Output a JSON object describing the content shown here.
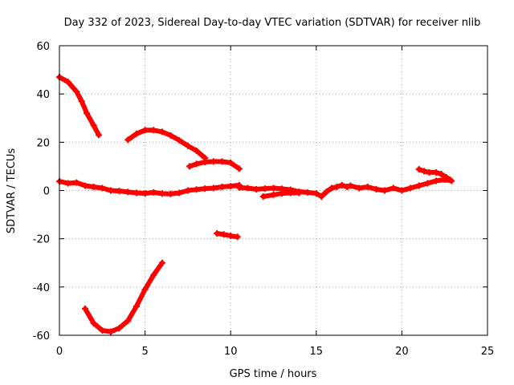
{
  "chart_data": {
    "type": "scatter",
    "title": "Day 332 of 2023, Sidereal Day-to-day VTEC variation (SDTVAR) for receiver nlib",
    "xlabel": "GPS time / hours",
    "ylabel": "SDTVAR / TECUs",
    "xlim": [
      0,
      25
    ],
    "ylim": [
      -60,
      60
    ],
    "xticks": [
      0,
      5,
      10,
      15,
      20,
      25
    ],
    "yticks": [
      -60,
      -40,
      -20,
      0,
      20,
      40,
      60
    ],
    "grid": true,
    "legend": "none",
    "series_color": "#ff0000",
    "series": [
      {
        "name": "baseline",
        "x": [
          0.0,
          0.5,
          1.0,
          1.5,
          2.0,
          2.5,
          3.0,
          3.5,
          4.0,
          4.5,
          5.0,
          5.5,
          6.0,
          6.5,
          7.0,
          7.5,
          8.0,
          8.5,
          9.0,
          9.5,
          10.0,
          10.5
        ],
        "y": [
          3.8,
          3.0,
          3.3,
          2.0,
          1.5,
          1.0,
          0.0,
          -0.2,
          -0.6,
          -1.0,
          -1.2,
          -0.8,
          -1.3,
          -1.4,
          -1.0,
          0.0,
          0.4,
          0.8,
          1.0,
          1.5,
          1.8,
          2.2
        ]
      },
      {
        "name": "mid",
        "x": [
          10.5,
          11.0,
          11.5,
          12.0,
          12.5,
          13.0,
          13.5,
          14.0,
          14.5,
          15.0,
          15.3,
          15.6,
          15.9,
          16.2,
          16.5,
          16.8,
          17.0,
          17.5,
          18.0,
          18.5,
          19.0,
          19.5,
          20.0,
          20.5,
          21.0,
          21.5,
          22.0,
          22.5,
          22.9
        ],
        "y": [
          1.2,
          1.0,
          0.5,
          0.8,
          1.0,
          0.7,
          0.3,
          -0.5,
          -0.8,
          -1.2,
          -2.5,
          -0.5,
          1.0,
          1.5,
          2.2,
          1.5,
          2.0,
          1.0,
          1.5,
          0.5,
          0.0,
          1.0,
          0.0,
          1.0,
          2.0,
          3.0,
          4.0,
          4.5,
          4.0
        ]
      },
      {
        "name": "low-branch",
        "x": [
          11.9,
          12.5,
          13.0,
          13.5,
          14.0
        ],
        "y": [
          -2.5,
          -1.8,
          -1.2,
          -1.0,
          -1.0
        ]
      },
      {
        "name": "bump-21h",
        "x": [
          21.0,
          21.3,
          21.6,
          22.0,
          22.3,
          22.6,
          22.8
        ],
        "y": [
          8.8,
          8.0,
          7.5,
          7.5,
          6.8,
          5.5,
          4.5
        ]
      },
      {
        "name": "arc-early",
        "x": [
          0.0,
          0.5,
          1.0,
          1.3,
          1.6,
          2.0,
          2.3
        ],
        "y": [
          47.0,
          45.0,
          41.0,
          37.0,
          32.0,
          27.0,
          23.0
        ]
      },
      {
        "name": "arc-mid",
        "x": [
          4.0,
          4.5,
          5.0,
          5.5,
          6.0,
          6.5,
          7.0,
          7.5,
          8.0,
          8.5
        ],
        "y": [
          21.0,
          23.5,
          25.0,
          25.0,
          24.3,
          22.8,
          20.8,
          18.5,
          16.5,
          13.5
        ]
      },
      {
        "name": "arc-late",
        "x": [
          7.6,
          8.0,
          8.5,
          9.0,
          9.5,
          10.0,
          10.5
        ],
        "y": [
          10.0,
          11.0,
          11.8,
          12.0,
          12.0,
          11.5,
          9.0
        ]
      },
      {
        "name": "neg-segment",
        "x": [
          9.2,
          9.6,
          10.0,
          10.4
        ],
        "y": [
          -17.8,
          -18.2,
          -18.8,
          -19.2
        ]
      },
      {
        "name": "dip",
        "x": [
          1.5,
          2.0,
          2.5,
          3.0,
          3.5,
          4.0,
          4.5,
          5.0,
          5.5,
          6.0
        ],
        "y": [
          -49.0,
          -55.0,
          -58.0,
          -58.5,
          -57.0,
          -54.0,
          -48.0,
          -41.0,
          -35.0,
          -30.0
        ]
      }
    ]
  }
}
